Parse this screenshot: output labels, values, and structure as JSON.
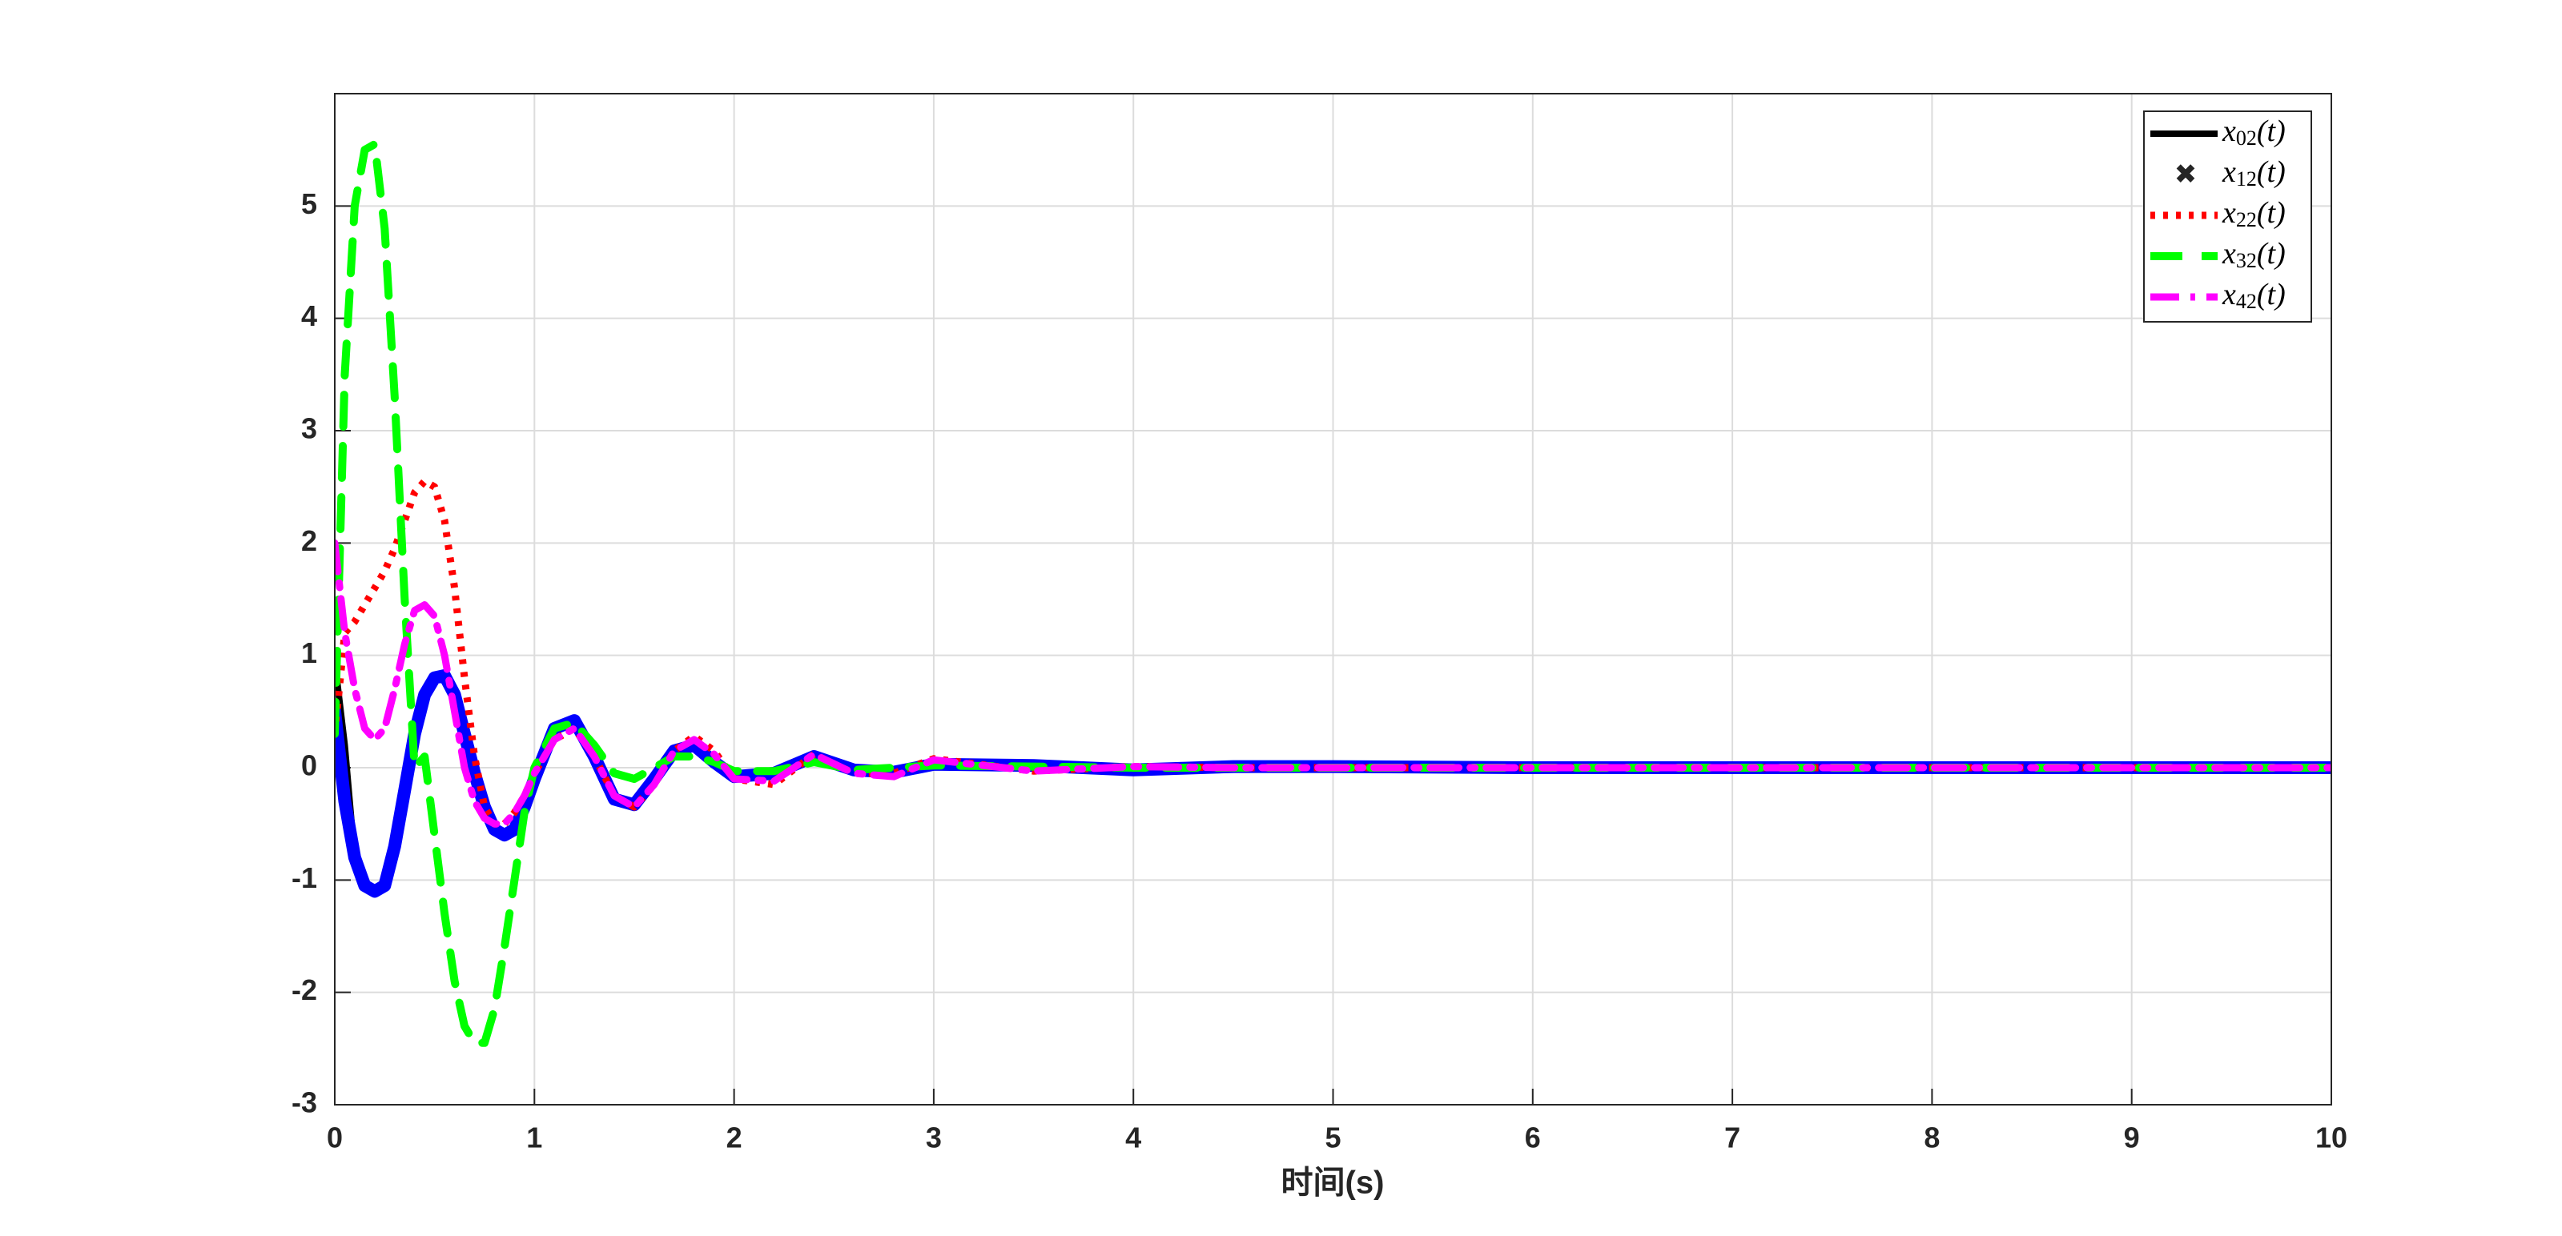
{
  "chart_data": {
    "type": "line",
    "xlabel": "时间(s)",
    "x": [
      0,
      0.05,
      0.1,
      0.15,
      0.2,
      0.25,
      0.3,
      0.35,
      0.4,
      0.45,
      0.5,
      0.55,
      0.6,
      0.65,
      0.7,
      0.75,
      0.8,
      0.85,
      0.9,
      0.95,
      1.0,
      1.1,
      1.2,
      1.3,
      1.4,
      1.5,
      1.6,
      1.7,
      1.8,
      1.9,
      2.0,
      2.2,
      2.4,
      2.6,
      2.8,
      3.0,
      3.5,
      4,
      4.5,
      5,
      6,
      7,
      8,
      9,
      10
    ],
    "series": [
      {
        "name": "x02(t)",
        "color": "#000000",
        "style": "solid",
        "values": [
          0.95,
          0.2,
          -0.8,
          -1.05,
          -1.1,
          -1.05,
          -0.7,
          -0.2,
          0.3,
          0.65,
          0.8,
          0.82,
          0.65,
          0.3,
          -0.05,
          -0.35,
          -0.55,
          -0.6,
          -0.55,
          -0.35,
          -0.1,
          0.35,
          0.42,
          0.1,
          -0.28,
          -0.33,
          -0.1,
          0.15,
          0.2,
          0.05,
          -0.08,
          -0.05,
          0.1,
          -0.02,
          -0.04,
          0.03,
          0.02,
          -0.02,
          0.01,
          0.01,
          0,
          0,
          0,
          0,
          0
        ]
      },
      {
        "name": "x12(t)",
        "color": "#0000ff",
        "style": "marker",
        "values": [
          0.5,
          -0.3,
          -0.8,
          -1.05,
          -1.1,
          -1.05,
          -0.7,
          -0.2,
          0.3,
          0.65,
          0.8,
          0.82,
          0.65,
          0.3,
          -0.05,
          -0.35,
          -0.55,
          -0.6,
          -0.55,
          -0.35,
          -0.1,
          0.35,
          0.42,
          0.1,
          -0.28,
          -0.33,
          -0.1,
          0.15,
          0.2,
          0.05,
          -0.08,
          -0.05,
          0.1,
          -0.02,
          -0.04,
          0.03,
          0.02,
          -0.02,
          0.01,
          0.01,
          0,
          0,
          0,
          0,
          0
        ]
      },
      {
        "name": "x22(t)",
        "color": "#ff0000",
        "style": "dotted",
        "values": [
          0.3,
          1.2,
          1.3,
          1.45,
          1.6,
          1.75,
          1.95,
          2.2,
          2.45,
          2.55,
          2.5,
          2.2,
          1.6,
          0.8,
          0.1,
          -0.35,
          -0.5,
          -0.5,
          -0.4,
          -0.25,
          -0.05,
          0.25,
          0.35,
          0.1,
          -0.25,
          -0.35,
          -0.15,
          0.15,
          0.28,
          0.15,
          -0.1,
          -0.15,
          0.12,
          -0.05,
          -0.05,
          0.08,
          -0.03,
          0.01,
          0,
          0,
          0,
          0,
          0,
          0,
          0
        ]
      },
      {
        "name": "x32(t)",
        "color": "#00ff00",
        "style": "dashed",
        "values": [
          0.3,
          3.5,
          5.0,
          5.5,
          5.55,
          4.8,
          3.3,
          1.5,
          0,
          0.1,
          -0.6,
          -1.3,
          -1.9,
          -2.3,
          -2.45,
          -2.45,
          -2.15,
          -1.6,
          -1.0,
          -0.4,
          0,
          0.35,
          0.4,
          0.2,
          -0.05,
          -0.1,
          0,
          0.1,
          0.1,
          0.05,
          -0.03,
          -0.03,
          0.05,
          -0.02,
          0,
          0.02,
          0.01,
          0,
          0,
          0,
          0,
          0,
          0,
          0,
          0
        ]
      },
      {
        "name": "x42(t)",
        "color": "#ff00ff",
        "style": "dashdot",
        "values": [
          2.0,
          1.2,
          0.7,
          0.35,
          0.25,
          0.35,
          0.7,
          1.1,
          1.4,
          1.45,
          1.35,
          1.0,
          0.5,
          0,
          -0.3,
          -0.45,
          -0.5,
          -0.5,
          -0.4,
          -0.25,
          -0.05,
          0.25,
          0.35,
          0.1,
          -0.25,
          -0.35,
          -0.15,
          0.15,
          0.25,
          0.12,
          -0.1,
          -0.12,
          0.12,
          -0.05,
          -0.08,
          0.07,
          -0.03,
          0.01,
          0,
          0,
          0,
          0,
          0,
          0,
          0
        ]
      }
    ],
    "xlim": [
      0,
      10
    ],
    "xticks": [
      0,
      1,
      2,
      3,
      4,
      5,
      6,
      7,
      8,
      9,
      10
    ],
    "ylim": [
      -3,
      6
    ],
    "yticks": [
      -3,
      -2,
      -1,
      0,
      1,
      2,
      3,
      4,
      5
    ],
    "grid": true,
    "legend": "upper right"
  }
}
